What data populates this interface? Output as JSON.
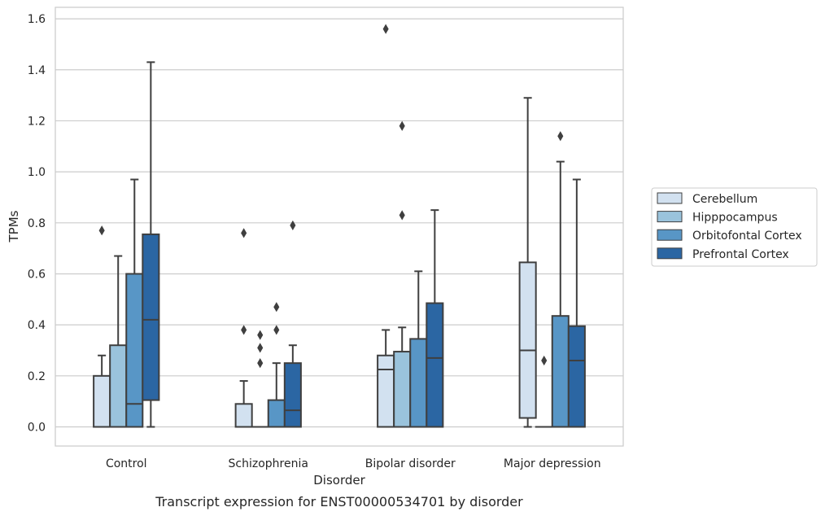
{
  "chart_data": {
    "type": "box",
    "title": "",
    "caption": "Transcript expression for ENST00000534701 by disorder",
    "xlabel": "Disorder",
    "ylabel": "TPMs",
    "ylim": [
      -0.075,
      1.645
    ],
    "yticks": [
      0.0,
      0.2,
      0.4,
      0.6,
      0.8,
      1.0,
      1.2,
      1.4,
      1.6
    ],
    "ytick_labels": [
      "0.0",
      "0.2",
      "0.4",
      "0.6",
      "0.8",
      "1.0",
      "1.2",
      "1.4",
      "1.6"
    ],
    "grid": "horizontal",
    "legend_position": "right",
    "categories": [
      "Control",
      "Schizophrenia",
      "Bipolar disorder",
      "Major depression"
    ],
    "series": [
      {
        "name": "Cerebellum",
        "color": "#d2e1f0",
        "boxes": [
          {
            "whislo": 0.0,
            "q1": 0.0,
            "med": 0.0,
            "q3": 0.2,
            "whishi": 0.28,
            "fliers": [
              0.77
            ]
          },
          {
            "whislo": 0.0,
            "q1": 0.0,
            "med": 0.0,
            "q3": 0.09,
            "whishi": 0.18,
            "fliers": [
              0.38,
              0.76
            ]
          },
          {
            "whislo": 0.0,
            "q1": 0.0,
            "med": 0.225,
            "q3": 0.28,
            "whishi": 0.38,
            "fliers": [
              1.56
            ]
          },
          {
            "whislo": 0.0,
            "q1": 0.035,
            "med": 0.3,
            "q3": 0.645,
            "whishi": 1.29,
            "fliers": []
          }
        ]
      },
      {
        "name": "Hipppocampus",
        "color": "#9ac3dc",
        "boxes": [
          {
            "whislo": 0.0,
            "q1": 0.0,
            "med": 0.0,
            "q3": 0.32,
            "whishi": 0.67,
            "fliers": []
          },
          {
            "whislo": 0.0,
            "q1": 0.0,
            "med": 0.0,
            "q3": 0.0,
            "whishi": 0.0,
            "fliers": [
              0.25,
              0.31,
              0.36
            ]
          },
          {
            "whislo": 0.0,
            "q1": 0.0,
            "med": 0.0,
            "q3": 0.295,
            "whishi": 0.39,
            "fliers": [
              0.83,
              1.18
            ]
          },
          {
            "whislo": 0.0,
            "q1": 0.0,
            "med": 0.0,
            "q3": 0.0,
            "whishi": 0.0,
            "fliers": [
              0.26
            ]
          }
        ]
      },
      {
        "name": "Orbitofontal Cortex",
        "color": "#5896c6",
        "boxes": [
          {
            "whislo": 0.0,
            "q1": 0.0,
            "med": 0.09,
            "q3": 0.6,
            "whishi": 0.97,
            "fliers": []
          },
          {
            "whislo": 0.0,
            "q1": 0.0,
            "med": 0.0,
            "q3": 0.105,
            "whishi": 0.25,
            "fliers": [
              0.38,
              0.47
            ]
          },
          {
            "whislo": 0.0,
            "q1": 0.0,
            "med": 0.0,
            "q3": 0.345,
            "whishi": 0.61,
            "fliers": []
          },
          {
            "whislo": 0.0,
            "q1": 0.0,
            "med": 0.0,
            "q3": 0.435,
            "whishi": 1.04,
            "fliers": [
              1.14
            ]
          }
        ]
      },
      {
        "name": "Prefrontal Cortex",
        "color": "#2b66a3",
        "boxes": [
          {
            "whislo": 0.0,
            "q1": 0.105,
            "med": 0.42,
            "q3": 0.755,
            "whishi": 1.43,
            "fliers": []
          },
          {
            "whislo": 0.0,
            "q1": 0.0,
            "med": 0.065,
            "q3": 0.25,
            "whishi": 0.32,
            "fliers": [
              0.79
            ]
          },
          {
            "whislo": 0.0,
            "q1": 0.0,
            "med": 0.27,
            "q3": 0.485,
            "whishi": 0.85,
            "fliers": []
          },
          {
            "whislo": 0.0,
            "q1": 0.0,
            "med": 0.26,
            "q3": 0.395,
            "whishi": 0.97,
            "fliers": []
          }
        ]
      }
    ]
  }
}
